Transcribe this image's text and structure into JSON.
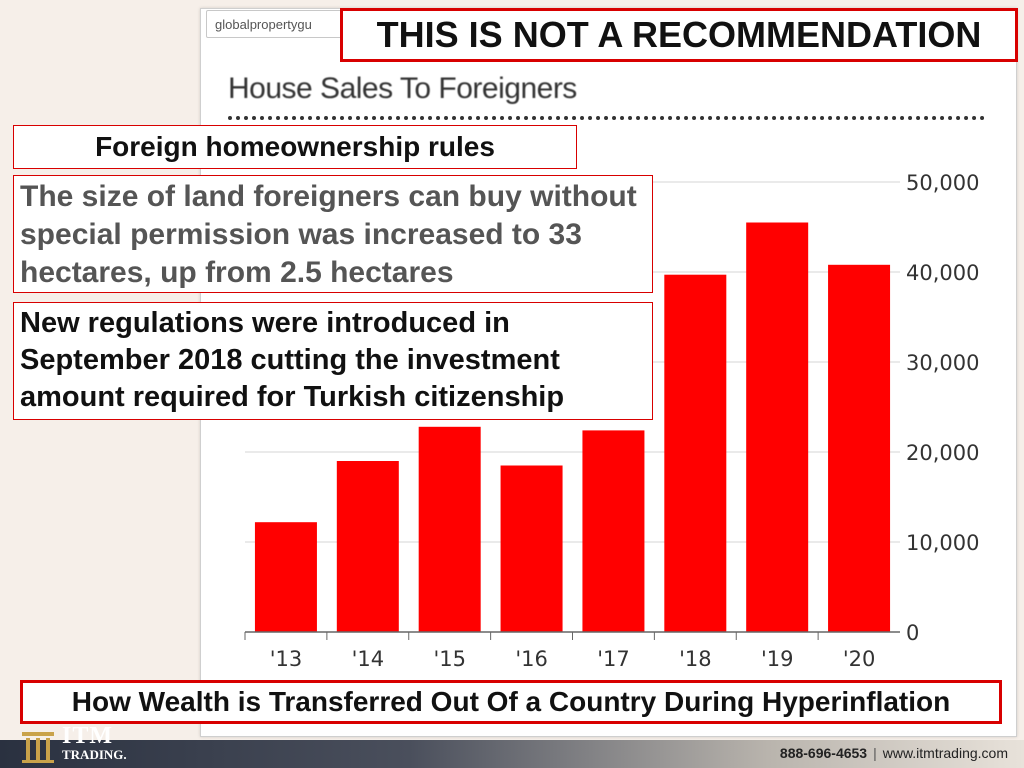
{
  "browser": {
    "url_text": "globalpropertygu"
  },
  "disclaimer": "THIS IS NOT A RECOMMENDATION",
  "overlays": {
    "rules_heading": "Foreign homeownership rules",
    "land_note": "The size of land foreigners can buy without special permission was increased to 33 hectares, up from 2.5 hectares",
    "citizenship_note": "New regulations were introduced in September 2018 cutting the investment amount required for Turkish citizenship"
  },
  "footer": {
    "title": "How Wealth is Transferred Out Of a Country During Hyperinflation",
    "logo_line1": "ITM",
    "logo_line2": "TRADING.",
    "phone": "888-696-4653",
    "website": "www.itmtrading.com"
  },
  "colors": {
    "bar": "#ff0000",
    "frame": "#d80000",
    "gold": "#c9a24a"
  },
  "chart_data": {
    "type": "bar",
    "title": "House Sales To Foreigners",
    "categories": [
      "'13",
      "'14",
      "'15",
      "'16",
      "'17",
      "'18",
      "'19",
      "'20"
    ],
    "values": [
      12200,
      19000,
      22800,
      18500,
      22400,
      39700,
      45500,
      40800
    ],
    "ylim": [
      0,
      50000
    ],
    "yticks": [
      0,
      10000,
      20000,
      30000,
      40000,
      50000
    ],
    "ytick_labels": [
      "0",
      "10,000",
      "20,000",
      "30,000",
      "40,000",
      "50,000"
    ],
    "axis_side": "right",
    "grid": true
  }
}
